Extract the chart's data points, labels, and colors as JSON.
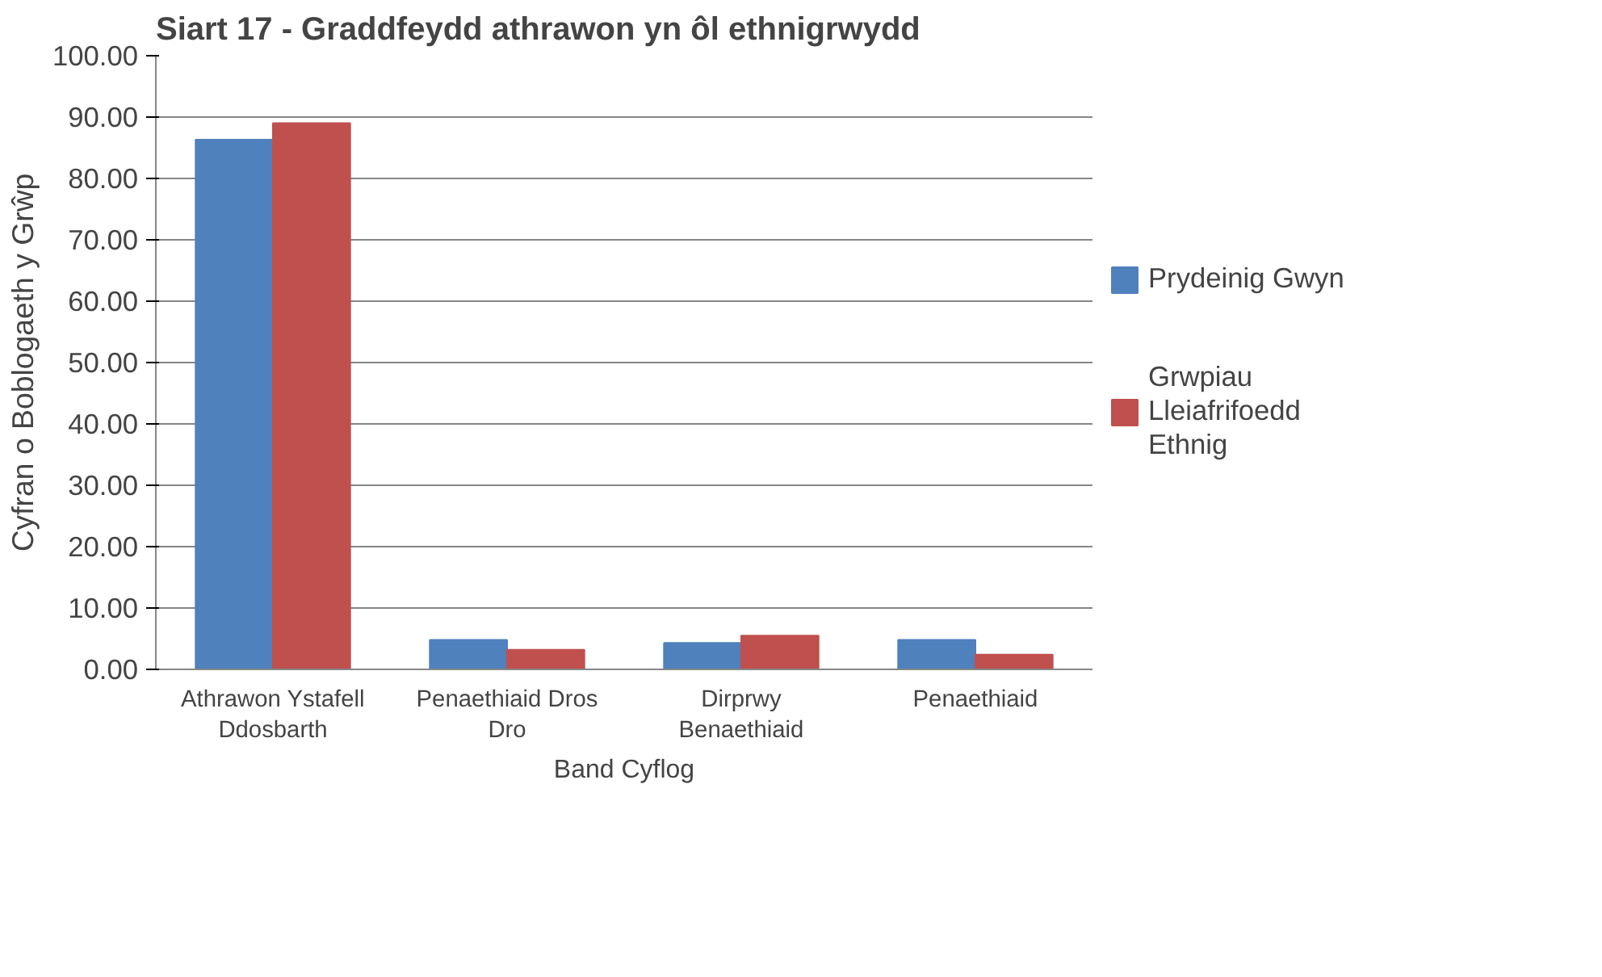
{
  "chart_data": {
    "type": "bar",
    "title": "Siart 17 - Graddfeydd athrawon yn ôl ethnigrwydd",
    "xlabel": "Band Cyflog",
    "ylabel": "Cyfran o Boblogaeth y Grŵp",
    "categories": [
      "Athrawon Ystafell Ddosbarth",
      "Penaethiaid Dros Dro",
      "Dirprwy Benaethiaid",
      "Penaethiaid"
    ],
    "series": [
      {
        "name": "Prydeinig Gwyn",
        "color": "#4f81bd",
        "values": [
          86.3,
          4.8,
          4.3,
          4.8
        ]
      },
      {
        "name": "Grwpiau Lleiafrifoedd Ethnig",
        "color": "#c0504d",
        "values": [
          89.0,
          3.2,
          5.5,
          2.4
        ]
      }
    ],
    "ylim": [
      0,
      100
    ],
    "yticks": [
      {
        "value": 0,
        "label": "0.00"
      },
      {
        "value": 10,
        "label": "10.00"
      },
      {
        "value": 20,
        "label": "20.00"
      },
      {
        "value": 30,
        "label": "30.00"
      },
      {
        "value": 40,
        "label": "40.00"
      },
      {
        "value": 50,
        "label": "50.00"
      },
      {
        "value": 60,
        "label": "60.00"
      },
      {
        "value": 70,
        "label": "70.00"
      },
      {
        "value": 80,
        "label": "80.00"
      },
      {
        "value": 90,
        "label": "90.00"
      },
      {
        "value": 100,
        "label": "100.00"
      }
    ],
    "grid": "y",
    "legend": "right"
  }
}
